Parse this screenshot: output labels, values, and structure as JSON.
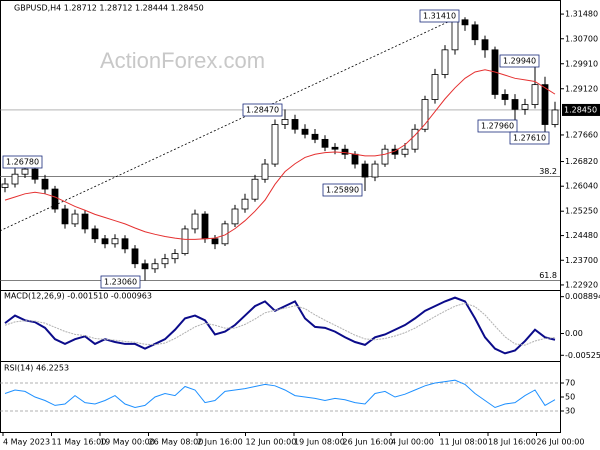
{
  "chart_data": {
    "type": "candlestick",
    "title": "GBPUSD,H4  1.28712 1.28712 1.28444 1.28450",
    "watermark": "ActionForex.com",
    "open": [
      1.26,
      1.2611,
      1.2642,
      1.2658,
      1.2626,
      1.2595,
      1.2532,
      1.2485,
      1.2516,
      1.2469,
      1.2438,
      1.2422,
      1.2438,
      1.2406,
      1.2359,
      1.2343,
      1.2359,
      1.2375,
      1.2391,
      1.2469,
      1.2516,
      1.2438,
      1.2422,
      1.2485,
      1.2532,
      1.2563,
      1.2626,
      1.2674,
      1.2799,
      1.2815,
      1.2784,
      1.2768,
      1.2752,
      1.2727,
      1.2721,
      1.2705,
      1.2674,
      1.2633,
      1.2674,
      1.2721,
      1.2705,
      1.2721,
      1.2784,
      1.2878,
      1.2957,
      1.3035,
      1.313,
      1.3114,
      1.3067,
      1.3035,
      1.2894,
      1.2878,
      1.2847,
      1.2862,
      1.2925,
      1.2799
    ],
    "high": [
      1.263,
      1.266,
      1.2678,
      1.267,
      1.264,
      1.2605,
      1.2545,
      1.253,
      1.2528,
      1.248,
      1.245,
      1.2452,
      1.2449,
      1.2418,
      1.2372,
      1.2375,
      1.239,
      1.2405,
      1.248,
      1.253,
      1.2525,
      1.245,
      1.2495,
      1.2545,
      1.258,
      1.264,
      1.269,
      1.2815,
      1.2847,
      1.283,
      1.28,
      1.2785,
      1.2765,
      1.274,
      1.2735,
      1.2715,
      1.2685,
      1.2685,
      1.2735,
      1.2735,
      1.274,
      1.28,
      1.289,
      1.2975,
      1.305,
      1.3141,
      1.3138,
      1.3125,
      1.308,
      1.3045,
      1.291,
      1.2895,
      1.288,
      1.2994,
      1.295,
      1.2871
    ],
    "low": [
      1.2585,
      1.26,
      1.263,
      1.2612,
      1.258,
      1.252,
      1.247,
      1.2475,
      1.2455,
      1.2425,
      1.2408,
      1.241,
      1.2392,
      1.2345,
      1.2306,
      1.233,
      1.2345,
      1.236,
      1.2385,
      1.2455,
      1.2425,
      1.2405,
      1.2415,
      1.2475,
      1.252,
      1.2555,
      1.2615,
      1.2665,
      1.2785,
      1.277,
      1.2755,
      1.274,
      1.2715,
      1.2705,
      1.269,
      1.266,
      1.2589,
      1.262,
      1.2665,
      1.269,
      1.2695,
      1.271,
      1.2775,
      1.2865,
      1.2945,
      1.302,
      1.3095,
      1.305,
      1.301,
      1.288,
      1.286,
      1.2796,
      1.283,
      1.285,
      1.2761,
      1.279
    ],
    "close": [
      1.2611,
      1.2642,
      1.2658,
      1.2626,
      1.2595,
      1.2532,
      1.2485,
      1.2516,
      1.2469,
      1.2438,
      1.2422,
      1.2438,
      1.2406,
      1.2359,
      1.2343,
      1.2359,
      1.2375,
      1.2391,
      1.2469,
      1.2516,
      1.2438,
      1.2422,
      1.2485,
      1.2532,
      1.2563,
      1.2626,
      1.2674,
      1.2799,
      1.2815,
      1.2784,
      1.2768,
      1.2752,
      1.2727,
      1.2721,
      1.2705,
      1.2674,
      1.2633,
      1.2674,
      1.2721,
      1.2705,
      1.2721,
      1.2784,
      1.2878,
      1.2957,
      1.3035,
      1.313,
      1.3114,
      1.3067,
      1.3035,
      1.2894,
      1.2878,
      1.2847,
      1.2862,
      1.2925,
      1.2799,
      1.2845
    ],
    "ma": {
      "color": "#e53030",
      "values": [
        1.256,
        1.257,
        1.258,
        1.2585,
        1.258,
        1.257,
        1.2555,
        1.254,
        1.2528,
        1.2515,
        1.2505,
        1.2495,
        1.2485,
        1.2472,
        1.246,
        1.2452,
        1.2445,
        1.244,
        1.2436,
        1.2436,
        1.2438,
        1.244,
        1.245,
        1.247,
        1.2495,
        1.2525,
        1.256,
        1.261,
        1.265,
        1.2675,
        1.2695,
        1.2705,
        1.271,
        1.2712,
        1.271,
        1.2705,
        1.27,
        1.27,
        1.2705,
        1.2715,
        1.2735,
        1.2765,
        1.28,
        1.284,
        1.288,
        1.2915,
        1.2945,
        1.2965,
        1.2972,
        1.2965,
        1.2955,
        1.2945,
        1.294,
        1.2935,
        1.2915,
        1.2895
      ]
    },
    "ylim": [
      1.2276,
      1.3183
    ],
    "yticks": [
      {
        "value": 1.3148,
        "label": "1.31480"
      },
      {
        "value": 1.307,
        "label": "1.30700"
      },
      {
        "value": 1.2991,
        "label": "1.29910"
      },
      {
        "value": 1.2912,
        "label": "1.29120"
      },
      {
        "value": 1.2766,
        "label": "1.27660"
      },
      {
        "value": 1.2682,
        "label": "1.26820"
      },
      {
        "value": 1.2604,
        "label": "1.26040"
      },
      {
        "value": 1.2525,
        "label": "1.25250"
      },
      {
        "value": 1.2448,
        "label": "1.24480"
      },
      {
        "value": 1.237,
        "label": "1.23700"
      },
      {
        "value": 1.2292,
        "label": "1.22920"
      }
    ],
    "last_price": {
      "value": 1.2845,
      "label": "1.28450"
    },
    "price_labels": [
      "1.31410",
      "1.29940",
      "1.28470",
      "1.26780",
      "1.27960",
      "1.27610",
      "1.25890",
      "1.23060"
    ],
    "fib": {
      "ratios": [
        38.2,
        61.8
      ],
      "prices": [
        1.2635,
        1.2306
      ]
    },
    "trendline": [
      1.2463,
      1.3141
    ],
    "xtick_labels": [
      "4 May 2023",
      "11 May 16:00",
      "19 May 00:00",
      "26 May 08:00",
      "2 Jun 16:00",
      "12 Jun 00:00",
      "19 Jun 08:00",
      "26 Jun 16:00",
      "4 Jul 00:00",
      "11 Jul 08:00",
      "18 Jul 16:00",
      "26 Jul 00:00"
    ],
    "macd": {
      "title": "MACD(12,26,9) -0.001510 -0.000963",
      "ylim": [
        -0.00639,
        0.01026
      ],
      "yticks": [
        0.008894,
        {
          "value": 0,
          "label": "0.00"
        },
        -0.005252
      ],
      "series": [
        {
          "color": "#0b0b8a",
          "values": [
            0.00251,
            0.00433,
            0.00319,
            0.00274,
            0.00137,
            -0.00137,
            -0.00251,
            -0.00137,
            -0.00068,
            -0.00251,
            -0.00137,
            -0.00205,
            -0.00251,
            -0.00251,
            -0.00365,
            -0.00251,
            -0.00137,
            0.00091,
            0.00365,
            0.00433,
            0.00319,
            -0.00023,
            0.00046,
            0.00205,
            0.00433,
            0.00661,
            0.00775,
            0.00547,
            0.00661,
            0.00775,
            0.00365,
            0.0016,
            0.00137,
            0.00046,
            -0.00091,
            -0.00205,
            -0.00274,
            -0.00091,
            -0.00023,
            0.00091,
            0.00205,
            0.00365,
            0.00547,
            0.00661,
            0.00775,
            0.00866,
            0.00775,
            0.00365,
            -0.00091,
            -0.00365,
            -0.00479,
            -0.0041,
            -0.00182,
            0.00091,
            -0.00091,
            -0.00151
          ]
        },
        {
          "color": "#b0b0b0",
          "values": [
            0.002,
            0.0028,
            0.0031,
            0.003,
            0.0025,
            0.0015,
            0.0005,
            -0.0002,
            -0.0005,
            -0.0012,
            -0.0014,
            -0.0016,
            -0.0019,
            -0.0021,
            -0.0026,
            -0.0027,
            -0.0023,
            -0.0012,
            0.0002,
            0.0016,
            0.0025,
            0.002,
            0.0013,
            0.0013,
            0.0022,
            0.0035,
            0.005,
            0.0056,
            0.0061,
            0.0067,
            0.006,
            0.0045,
            0.0032,
            0.002,
            0.0008,
            -0.0004,
            -0.0013,
            -0.0015,
            -0.0012,
            -0.0006,
            0.0002,
            0.0013,
            0.0027,
            0.0041,
            0.0054,
            0.0066,
            0.0073,
            0.0065,
            0.0045,
            0.0018,
            -0.0008,
            -0.0025,
            -0.0028,
            -0.0018,
            -0.0012,
            -0.000963
          ]
        }
      ]
    },
    "rsi": {
      "title": "RSI(14) 46.2253",
      "ylim": [
        0,
        100
      ],
      "yticks": [
        70,
        50,
        30
      ],
      "levels": [
        70,
        30
      ],
      "color": "#1e90ff",
      "values": [
        55,
        60,
        58,
        50,
        45,
        38,
        40,
        52,
        42,
        40,
        45,
        52,
        40,
        35,
        38,
        50,
        55,
        52,
        65,
        60,
        42,
        45,
        58,
        60,
        62,
        65,
        68,
        66,
        60,
        52,
        50,
        48,
        45,
        48,
        46,
        42,
        40,
        55,
        58,
        50,
        54,
        60,
        66,
        70,
        72,
        74,
        68,
        55,
        45,
        35,
        40,
        42,
        52,
        60,
        38,
        46.2253
      ]
    }
  }
}
